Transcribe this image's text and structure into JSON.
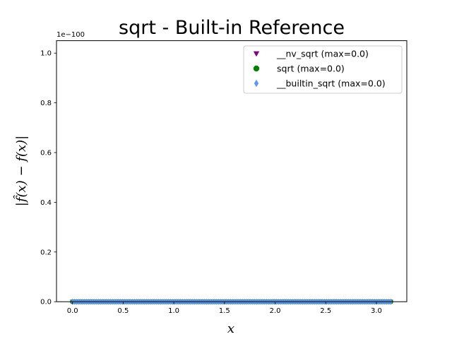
{
  "chart_data": {
    "type": "scatter",
    "title": "sqrt - Built-in Reference",
    "xlabel": "x",
    "ylabel": "|f̂(x) − f(x)|",
    "y_offset_label": "1e−100",
    "xlim": [
      -0.158,
      3.3
    ],
    "ylim": [
      0,
      1.05
    ],
    "x_ticks": [
      0.0,
      0.5,
      1.0,
      1.5,
      2.0,
      2.5,
      3.0
    ],
    "x_tick_labels": [
      "0.0",
      "0.5",
      "1.0",
      "1.5",
      "2.0",
      "2.5",
      "3.0"
    ],
    "y_ticks": [
      0.0,
      0.2,
      0.4,
      0.6,
      0.8,
      1.0
    ],
    "y_tick_labels": [
      "0.0",
      "0.2",
      "0.4",
      "0.6",
      "0.8",
      "1.0"
    ],
    "grid": false,
    "legend_position": "top-right",
    "x_range": [
      0.0,
      3.1416
    ],
    "series": [
      {
        "name": "__nv_sqrt (max=0.0)",
        "marker": "triangle-down",
        "color": "#800080",
        "value": 0.0
      },
      {
        "name": "sqrt (max=0.0)",
        "marker": "circle",
        "color": "#008000",
        "value": 0.0
      },
      {
        "name": "__builtin_sqrt (max=0.0)",
        "marker": "diamond",
        "color": "#6495ED",
        "value": 0.0
      }
    ]
  }
}
